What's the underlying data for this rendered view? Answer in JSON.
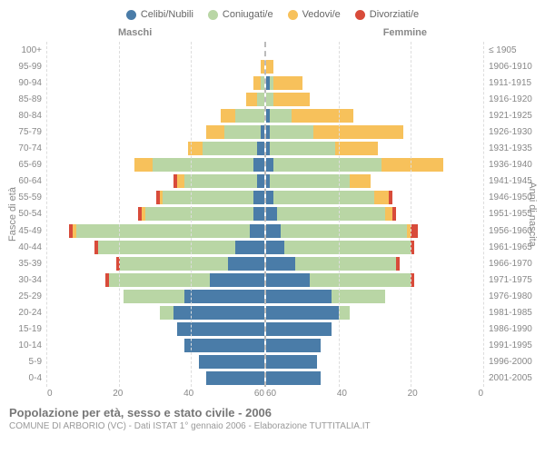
{
  "type": "population-pyramid",
  "legend": [
    {
      "label": "Celibi/Nubili",
      "color": "#4a7ca8"
    },
    {
      "label": "Coniugati/e",
      "color": "#b9d6a5"
    },
    {
      "label": "Vedovi/e",
      "color": "#f7c15b"
    },
    {
      "label": "Divorziati/e",
      "color": "#d84b3a"
    }
  ],
  "headers": {
    "male": "Maschi",
    "female": "Femmine"
  },
  "axis_labels": {
    "left": "Fasce di età",
    "right": "Anni di nascita"
  },
  "age_groups": [
    "100+",
    "95-99",
    "90-94",
    "85-89",
    "80-84",
    "75-79",
    "70-74",
    "65-69",
    "60-64",
    "55-59",
    "50-54",
    "45-49",
    "40-44",
    "35-39",
    "30-34",
    "25-29",
    "20-24",
    "15-19",
    "10-14",
    "5-9",
    "0-4"
  ],
  "birth_years": [
    "≤ 1905",
    "1906-1910",
    "1911-1915",
    "1916-1920",
    "1921-1925",
    "1926-1930",
    "1931-1935",
    "1936-1940",
    "1941-1945",
    "1946-1950",
    "1951-1955",
    "1956-1960",
    "1961-1965",
    "1966-1970",
    "1971-1975",
    "1976-1980",
    "1981-1985",
    "1986-1990",
    "1991-1995",
    "1996-2000",
    "2001-2005"
  ],
  "x_max": 60,
  "x_ticks": [
    60,
    40,
    20,
    0
  ],
  "colors": {
    "single": "#4a7ca8",
    "married": "#b9d6a5",
    "widowed": "#f7c15b",
    "divorced": "#d84b3a",
    "grid": "#dddddd",
    "axis_dash": "#bbbbbb",
    "text": "#888888",
    "bg": "#ffffff"
  },
  "fonts": {
    "legend_size": 11,
    "label_size": 10,
    "title_size": 13,
    "subtitle_size": 10
  },
  "male": [
    [
      0,
      0,
      0,
      0
    ],
    [
      0,
      0,
      1,
      0
    ],
    [
      0,
      1,
      2,
      0
    ],
    [
      0,
      2,
      3,
      0
    ],
    [
      0,
      8,
      4,
      0
    ],
    [
      1,
      10,
      5,
      0
    ],
    [
      2,
      15,
      4,
      0
    ],
    [
      3,
      28,
      5,
      0
    ],
    [
      2,
      20,
      2,
      1
    ],
    [
      3,
      25,
      1,
      1
    ],
    [
      3,
      30,
      1,
      1
    ],
    [
      4,
      48,
      1,
      1
    ],
    [
      8,
      38,
      0,
      1
    ],
    [
      10,
      30,
      0,
      1
    ],
    [
      15,
      28,
      0,
      1
    ],
    [
      22,
      17,
      0,
      0
    ],
    [
      25,
      4,
      0,
      0
    ],
    [
      24,
      0,
      0,
      0
    ],
    [
      22,
      0,
      0,
      0
    ],
    [
      18,
      0,
      0,
      0
    ],
    [
      16,
      0,
      0,
      0
    ]
  ],
  "female": [
    [
      0,
      0,
      0,
      0
    ],
    [
      0,
      0,
      2,
      0
    ],
    [
      1,
      1,
      8,
      0
    ],
    [
      0,
      2,
      10,
      0
    ],
    [
      1,
      6,
      17,
      0
    ],
    [
      1,
      12,
      25,
      0
    ],
    [
      1,
      18,
      12,
      0
    ],
    [
      2,
      30,
      17,
      0
    ],
    [
      1,
      22,
      6,
      0
    ],
    [
      2,
      28,
      4,
      1
    ],
    [
      3,
      30,
      2,
      1
    ],
    [
      4,
      35,
      1,
      2
    ],
    [
      5,
      35,
      0,
      1
    ],
    [
      8,
      28,
      0,
      1
    ],
    [
      12,
      28,
      0,
      1
    ],
    [
      18,
      15,
      0,
      0
    ],
    [
      20,
      3,
      0,
      0
    ],
    [
      18,
      0,
      0,
      0
    ],
    [
      15,
      0,
      0,
      0
    ],
    [
      14,
      0,
      0,
      0
    ],
    [
      15,
      0,
      0,
      0
    ]
  ],
  "title": "Popolazione per età, sesso e stato civile - 2006",
  "subtitle": "COMUNE DI ARBORIO (VC) - Dati ISTAT 1° gennaio 2006 - Elaborazione TUTTITALIA.IT"
}
